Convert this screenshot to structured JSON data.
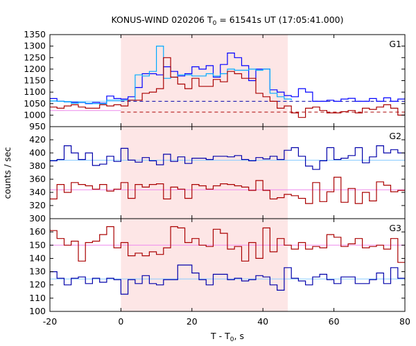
{
  "chart_data": {
    "type": "line",
    "title": "KONUS-WIND 020206 T",
    "title_sub": "0",
    "title_rest": " = 61541s UT (17:05:41.000)",
    "xlabel": "T - T",
    "xlabel_sub": "0",
    "xlabel_rest": ", s",
    "ylabel": "counts / sec",
    "xlim": [
      -20,
      80
    ],
    "x_ticks": [
      -20,
      0,
      20,
      40,
      60,
      80
    ],
    "highlight_interval": [
      0,
      47
    ],
    "panels": [
      {
        "name": "G1",
        "ylim": [
          950,
          1350
        ],
        "y_ticks": [
          950,
          1000,
          1050,
          1100,
          1150,
          1200,
          1250,
          1300,
          1350
        ],
        "series": [
          {
            "color": "#0000ff",
            "edges": [
              -22,
              -20,
              -18,
              -16,
              -14,
              -12,
              -10,
              -8,
              -6,
              -4,
              -2,
              0,
              2,
              4,
              6,
              8,
              10,
              12,
              14,
              16,
              18,
              20,
              22,
              24,
              26,
              28,
              30,
              32,
              34,
              36,
              38,
              40,
              42,
              44,
              46,
              48,
              50,
              52,
              54,
              56,
              58,
              60,
              62,
              64,
              66,
              68,
              70,
              72,
              74,
              76,
              78,
              80,
              82
            ],
            "values": [
              1070,
              1072,
              1060,
              1058,
              1056,
              1055,
              1050,
              1055,
              1052,
              1083,
              1072,
              1070,
              1080,
              1120,
              1180,
              1180,
              1175,
              1210,
              1190,
              1170,
              1180,
              1210,
              1200,
              1215,
              1165,
              1220,
              1270,
              1250,
              1215,
              1150,
              1200,
              1200,
              1110,
              1100,
              1085,
              1080,
              1115,
              1100,
              1060,
              1060,
              1065,
              1060,
              1070,
              1073,
              1060,
              1060,
              1072,
              1060,
              1075,
              1060,
              1070,
              1075
            ]
          },
          {
            "color": "#00aaff",
            "edges": [
              -22,
              -20,
              -18,
              -16,
              -14,
              -12,
              -10,
              -8,
              -6,
              -4,
              -2,
              0,
              2,
              4,
              6,
              8,
              10,
              12,
              14,
              16,
              18,
              20,
              22,
              24,
              26,
              28,
              30,
              32,
              34,
              36,
              38,
              40,
              42,
              44,
              46,
              48
            ],
            "values": [
              1065,
              1062,
              1060,
              1058,
              1052,
              1056,
              1052,
              1050,
              1050,
              1065,
              1065,
              1065,
              1065,
              1175,
              1170,
              1190,
              1300,
              1160,
              1165,
              1175,
              1175,
              1170,
              1170,
              1180,
              1170,
              1180,
              1200,
              1195,
              1195,
              1200,
              1195,
              1200,
              1095,
              1080,
              1070,
              1065
            ]
          },
          {
            "color": "#aa0000",
            "edges": [
              -22,
              -20,
              -18,
              -16,
              -14,
              -12,
              -10,
              -8,
              -6,
              -4,
              -2,
              0,
              2,
              4,
              6,
              8,
              10,
              12,
              14,
              16,
              18,
              20,
              22,
              24,
              26,
              28,
              30,
              32,
              34,
              36,
              38,
              40,
              42,
              44,
              46,
              48,
              50,
              52,
              54,
              56,
              58,
              60,
              62,
              64,
              66,
              68,
              70,
              72,
              74,
              76,
              78,
              80,
              82
            ],
            "values": [
              1040,
              1035,
              1030,
              1040,
              1045,
              1035,
              1030,
              1030,
              1045,
              1040,
              1045,
              1040,
              1065,
              1065,
              1095,
              1100,
              1115,
              1250,
              1165,
              1135,
              1115,
              1160,
              1125,
              1125,
              1155,
              1145,
              1190,
              1180,
              1160,
              1160,
              1095,
              1080,
              1060,
              1030,
              1040,
              1010,
              990,
              1030,
              1035,
              1020,
              1010,
              1010,
              1015,
              1020,
              1010,
              1030,
              1025,
              1035,
              1045,
              1030,
              1000,
              1015
            ]
          }
        ],
        "ref_lines": [
          {
            "color": "#0000aa",
            "y": 1060,
            "dashed": true,
            "x_from": 0,
            "x_to": 80
          },
          {
            "color": "#aa0000",
            "y": 1013,
            "dashed": true,
            "x_from": 0,
            "x_to": 80
          },
          {
            "color": "#88ccff",
            "y": 1060,
            "dashed": false,
            "x_from": -20,
            "x_to": 0
          },
          {
            "color": "#ee88ee",
            "y": 1020,
            "dashed": false,
            "x_from": -20,
            "x_to": 0
          }
        ]
      },
      {
        "name": "G2",
        "ylim": [
          300,
          440
        ],
        "y_ticks": [
          300,
          320,
          340,
          360,
          380,
          400,
          420
        ],
        "series": [
          {
            "color": "#0000aa",
            "edges": [
              -22,
              -20,
              -18,
              -16,
              -14,
              -12,
              -10,
              -8,
              -6,
              -4,
              -2,
              0,
              2,
              4,
              6,
              8,
              10,
              12,
              14,
              16,
              18,
              20,
              22,
              24,
              26,
              28,
              30,
              32,
              34,
              36,
              38,
              40,
              42,
              44,
              46,
              48,
              50,
              52,
              54,
              56,
              58,
              60,
              62,
              64,
              66,
              68,
              70,
              72,
              74,
              76,
              78,
              80,
              82
            ],
            "values": [
              386,
              388,
              390,
              411,
              400,
              390,
              400,
              381,
              383,
              395,
              387,
              407,
              389,
              386,
              393,
              388,
              382,
              398,
              387,
              394,
              384,
              392,
              392,
              390,
              395,
              395,
              394,
              396,
              390,
              388,
              393,
              391,
              395,
              390,
              404,
              408,
              395,
              380,
              375,
              388,
              408,
              390,
              392,
              396,
              408,
              385,
              394,
              411,
              400,
              405,
              400,
              388
            ]
          },
          {
            "color": "#aa0000",
            "edges": [
              -22,
              -20,
              -18,
              -16,
              -14,
              -12,
              -10,
              -8,
              -6,
              -4,
              -2,
              0,
              2,
              4,
              6,
              8,
              10,
              12,
              14,
              16,
              18,
              20,
              22,
              24,
              26,
              28,
              30,
              32,
              34,
              36,
              38,
              40,
              42,
              44,
              46,
              48,
              50,
              52,
              54,
              56,
              58,
              60,
              62,
              64,
              66,
              68,
              70,
              72,
              74,
              76,
              78,
              80,
              82
            ],
            "values": [
              336,
              330,
              352,
              340,
              355,
              352,
              350,
              345,
              352,
              342,
              345,
              355,
              331,
              352,
              348,
              352,
              353,
              330,
              348,
              345,
              331,
              352,
              350,
              345,
              350,
              353,
              352,
              350,
              348,
              343,
              358,
              343,
              330,
              332,
              337,
              335,
              331,
              323,
              355,
              326,
              341,
              363,
              325,
              346,
              323,
              340,
              327,
              356,
              351,
              341,
              343,
              343
            ]
          }
        ],
        "ref_lines": [
          {
            "color": "#88ccff",
            "y": 389,
            "dashed": false,
            "x_from": -20,
            "x_to": 80
          },
          {
            "color": "#ee88ee",
            "y": 344,
            "dashed": false,
            "x_from": -20,
            "x_to": 80
          }
        ]
      },
      {
        "name": "G3",
        "ylim": [
          100,
          170
        ],
        "y_ticks": [
          100,
          110,
          120,
          130,
          140,
          150,
          160
        ],
        "series": [
          {
            "color": "#aa0000",
            "edges": [
              -22,
              -20,
              -18,
              -16,
              -14,
              -12,
              -10,
              -8,
              -6,
              -4,
              -2,
              0,
              2,
              4,
              6,
              8,
              10,
              12,
              14,
              16,
              18,
              20,
              22,
              24,
              26,
              28,
              30,
              32,
              34,
              36,
              38,
              40,
              42,
              44,
              46,
              48,
              50,
              52,
              54,
              56,
              58,
              60,
              62,
              64,
              66,
              68,
              70,
              72,
              74,
              76,
              78,
              80,
              82
            ],
            "values": [
              162,
              161,
              155,
              150,
              153,
              138,
              152,
              153,
              158,
              164,
              148,
              152,
              142,
              144,
              142,
              145,
              143,
              148,
              164,
              163,
              152,
              155,
              150,
              149,
              162,
              159,
              147,
              149,
              138,
              152,
              140,
              163,
              145,
              155,
              150,
              147,
              152,
              147,
              149,
              148,
              158,
              156,
              149,
              151,
              155,
              148,
              149,
              150,
              147,
              155,
              137,
              150
            ]
          },
          {
            "color": "#0000aa",
            "edges": [
              -22,
              -20,
              -18,
              -16,
              -14,
              -12,
              -10,
              -8,
              -6,
              -4,
              -2,
              0,
              2,
              4,
              6,
              8,
              10,
              12,
              14,
              16,
              18,
              20,
              22,
              24,
              26,
              28,
              30,
              32,
              34,
              36,
              38,
              40,
              42,
              44,
              46,
              48,
              50,
              52,
              54,
              56,
              58,
              60,
              62,
              64,
              66,
              68,
              70,
              72,
              74,
              76,
              78,
              80,
              82
            ],
            "values": [
              120,
              130,
              125,
              120,
              125,
              126,
              121,
              125,
              122,
              125,
              124,
              113,
              124,
              121,
              127,
              121,
              120,
              124,
              124,
              135,
              135,
              129,
              124,
              120,
              128,
              128,
              124,
              125,
              123,
              124,
              127,
              126,
              120,
              116,
              133,
              125,
              123,
              120,
              126,
              128,
              124,
              121,
              126,
              126,
              121,
              121,
              124,
              129,
              121,
              133,
              125,
              124
            ]
          }
        ],
        "ref_lines": [
          {
            "color": "#88ccff",
            "y": 124.5,
            "dashed": false,
            "x_from": -20,
            "x_to": 80
          },
          {
            "color": "#ee88ee",
            "y": 150,
            "dashed": false,
            "x_from": -20,
            "x_to": 80
          }
        ]
      }
    ]
  }
}
